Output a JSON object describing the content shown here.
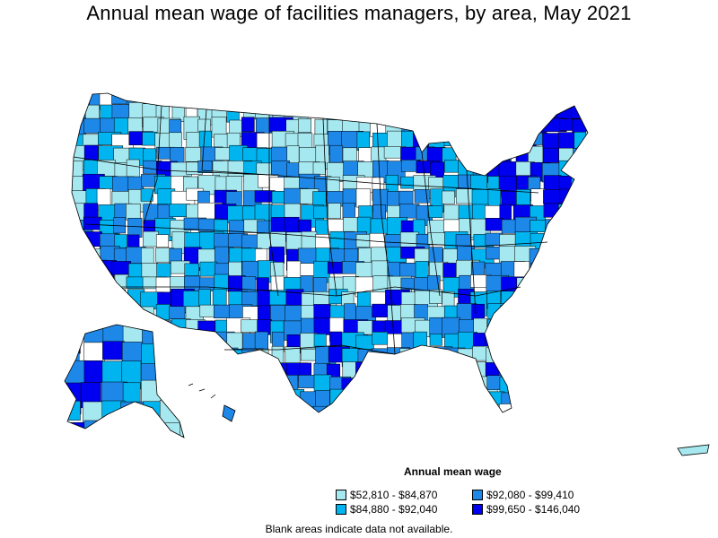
{
  "title": "Annual mean wage of facilities managers, by area, May 2021",
  "legend": {
    "title": "Annual mean wage",
    "items": [
      {
        "label": "$52,810 - $84,870",
        "color": "#a6e8ef"
      },
      {
        "label": "$84,880 - $92,040",
        "color": "#00b4f0"
      },
      {
        "label": "$92,080 - $99,410",
        "color": "#1e88e8"
      },
      {
        "label": "$99,650 - $146,040",
        "color": "#0000f0"
      }
    ]
  },
  "note": "Blank areas indicate data not available.",
  "colors": {
    "blank": "#ffffff",
    "border": "#000000"
  }
}
